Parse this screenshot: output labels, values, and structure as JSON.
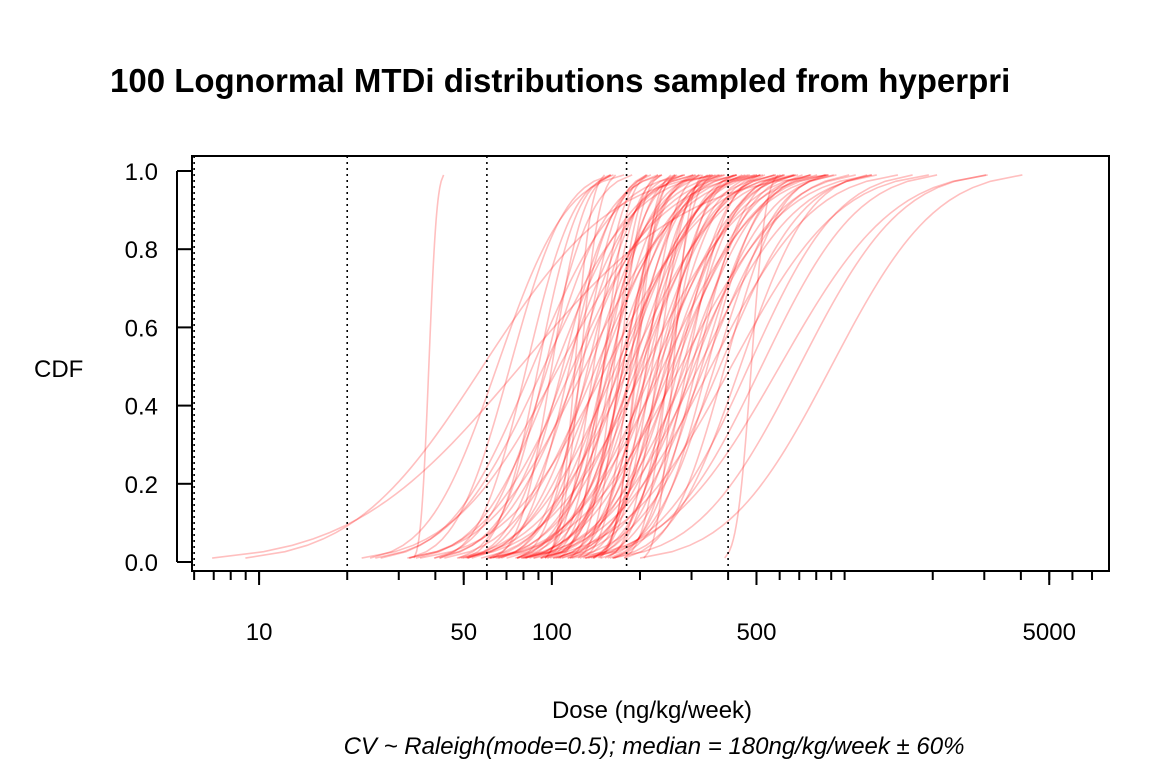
{
  "chart_data": {
    "type": "line",
    "title": "100 Lognormal MTDi distributions sampled from hyperpri",
    "xlabel": "Dose (ng/kg/week)",
    "subtitle": "CV ~ Raleigh(mode=0.5);  median = 180ng/kg/week ± 60%",
    "ylabel": "CDF",
    "x_scale": "log",
    "xlim": [
      5.9,
      8000
    ],
    "ylim": [
      0,
      1
    ],
    "x_tick_labels": [
      "10",
      "50",
      "100",
      "500",
      "5000"
    ],
    "x_tick_values": [
      10,
      50,
      100,
      500,
      5000
    ],
    "y_tick_labels": [
      "0.0",
      "0.2",
      "0.4",
      "0.6",
      "0.8",
      "1.0"
    ],
    "y_tick_values": [
      0,
      0.2,
      0.4,
      0.6,
      0.8,
      1.0
    ],
    "vertical_reference_lines": [
      6,
      20,
      60,
      180,
      400
    ],
    "reference_line_style": "dotted",
    "curve_color": "#ff0000",
    "curve_opacity": 0.25,
    "cdf_range": [
      0.01,
      0.99
    ],
    "series_medians": [
      38,
      58,
      65,
      72,
      78,
      82,
      86,
      90,
      94,
      97,
      100,
      103,
      106,
      109,
      112,
      115,
      118,
      121,
      124,
      127,
      130,
      133,
      136,
      139,
      142,
      145,
      148,
      151,
      154,
      157,
      160,
      163,
      166,
      169,
      172,
      175,
      178,
      181,
      184,
      187,
      190,
      193,
      196,
      199,
      202,
      205,
      208,
      212,
      216,
      220,
      224,
      228,
      232,
      236,
      240,
      244,
      248,
      252,
      256,
      260,
      265,
      270,
      275,
      280,
      285,
      290,
      295,
      300,
      306,
      312,
      318,
      325,
      332,
      340,
      350,
      360,
      375,
      390,
      410,
      440,
      470,
      520,
      600,
      700,
      900,
      120,
      125,
      150,
      170,
      185,
      195,
      210,
      230,
      250,
      150,
      160,
      175,
      95,
      260,
      480
    ],
    "series_cvs": [
      0.05,
      0.95,
      0.45,
      0.35,
      1.4,
      0.3,
      0.55,
      0.25,
      0.62,
      0.4,
      0.2,
      0.5,
      0.75,
      0.33,
      0.45,
      0.28,
      0.6,
      0.38,
      0.52,
      0.22,
      0.66,
      0.3,
      0.42,
      0.18,
      0.55,
      0.35,
      0.48,
      0.27,
      0.7,
      0.32,
      0.44,
      0.15,
      0.58,
      0.36,
      0.5,
      0.24,
      0.46,
      0.34,
      0.62,
      0.29,
      0.41,
      0.12,
      0.53,
      0.37,
      0.48,
      0.26,
      0.68,
      0.31,
      0.44,
      0.2,
      0.57,
      0.35,
      0.49,
      0.28,
      0.64,
      0.33,
      0.45,
      0.22,
      0.56,
      0.39,
      0.48,
      0.3,
      0.72,
      0.34,
      0.47,
      0.25,
      0.61,
      0.36,
      0.5,
      0.3,
      0.66,
      0.38,
      0.52,
      0.33,
      0.7,
      0.4,
      0.55,
      0.35,
      0.75,
      0.45,
      0.6,
      0.65,
      0.8,
      0.7,
      0.72,
      0.1,
      0.12,
      0.15,
      0.14,
      0.16,
      0.13,
      0.18,
      0.17,
      0.15,
      0.2,
      0.22,
      0.25,
      0.3,
      0.1,
      0.09
    ]
  }
}
